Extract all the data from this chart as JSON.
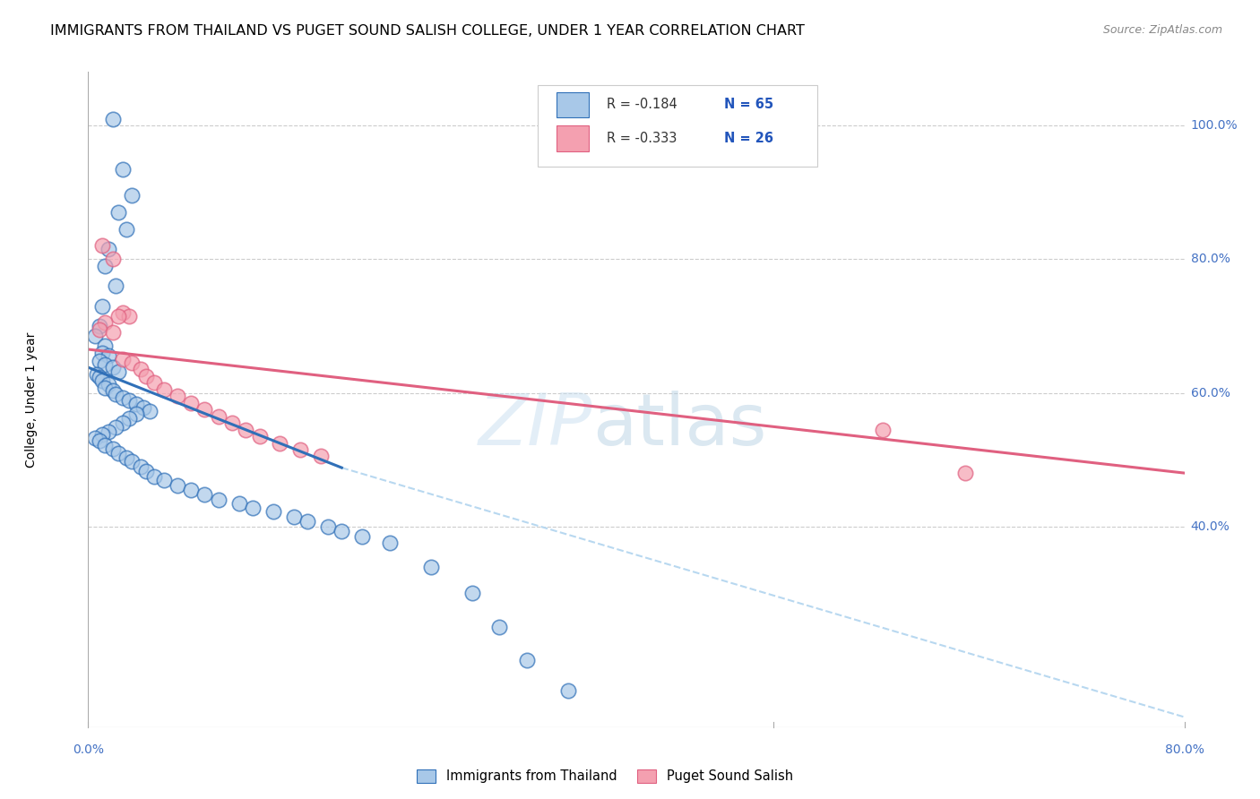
{
  "title": "IMMIGRANTS FROM THAILAND VS PUGET SOUND SALISH COLLEGE, UNDER 1 YEAR CORRELATION CHART",
  "source": "Source: ZipAtlas.com",
  "ylabel": "College, Under 1 year",
  "xlim": [
    0.0,
    0.8
  ],
  "ylim": [
    0.1,
    1.08
  ],
  "ytick_labels": [
    "40.0%",
    "60.0%",
    "80.0%",
    "100.0%"
  ],
  "ytick_values": [
    0.4,
    0.6,
    0.8,
    1.0
  ],
  "xtick_labels": [
    "0.0%",
    "80.0%"
  ],
  "xtick_values": [
    0.0,
    0.8
  ],
  "legend_r1": "R = -0.184",
  "legend_n1": "N = 65",
  "legend_r2": "R = -0.333",
  "legend_n2": "N = 26",
  "legend_label1": "Immigrants from Thailand",
  "legend_label2": "Puget Sound Salish",
  "color_blue": "#a8c8e8",
  "color_pink": "#f4a0b0",
  "color_blue_line": "#3070b8",
  "color_pink_line": "#e06080",
  "color_dashed_line": "#b8d8f0",
  "watermark1": "ZIP",
  "watermark2": "atlas",
  "blue_scatter_x": [
    0.018,
    0.025,
    0.032,
    0.022,
    0.028,
    0.015,
    0.012,
    0.02,
    0.01,
    0.008,
    0.005,
    0.012,
    0.01,
    0.015,
    0.008,
    0.012,
    0.018,
    0.022,
    0.006,
    0.008,
    0.01,
    0.015,
    0.012,
    0.018,
    0.02,
    0.025,
    0.03,
    0.035,
    0.04,
    0.045,
    0.035,
    0.03,
    0.025,
    0.02,
    0.015,
    0.01,
    0.005,
    0.008,
    0.012,
    0.018,
    0.022,
    0.028,
    0.032,
    0.038,
    0.042,
    0.048,
    0.055,
    0.065,
    0.075,
    0.085,
    0.095,
    0.11,
    0.12,
    0.135,
    0.15,
    0.16,
    0.175,
    0.185,
    0.2,
    0.22,
    0.25,
    0.28,
    0.3,
    0.32,
    0.35
  ],
  "blue_scatter_y": [
    1.01,
    0.935,
    0.895,
    0.87,
    0.845,
    0.815,
    0.79,
    0.76,
    0.73,
    0.7,
    0.685,
    0.67,
    0.66,
    0.655,
    0.648,
    0.642,
    0.638,
    0.632,
    0.628,
    0.623,
    0.618,
    0.613,
    0.608,
    0.603,
    0.598,
    0.593,
    0.588,
    0.583,
    0.578,
    0.572,
    0.568,
    0.562,
    0.555,
    0.548,
    0.542,
    0.538,
    0.533,
    0.528,
    0.522,
    0.516,
    0.51,
    0.503,
    0.497,
    0.49,
    0.483,
    0.475,
    0.47,
    0.462,
    0.455,
    0.448,
    0.44,
    0.435,
    0.428,
    0.422,
    0.415,
    0.408,
    0.4,
    0.393,
    0.385,
    0.375,
    0.34,
    0.3,
    0.25,
    0.2,
    0.155
  ],
  "pink_scatter_x": [
    0.01,
    0.018,
    0.025,
    0.03,
    0.022,
    0.012,
    0.008,
    0.018,
    0.025,
    0.032,
    0.038,
    0.042,
    0.048,
    0.055,
    0.065,
    0.075,
    0.085,
    0.095,
    0.105,
    0.115,
    0.125,
    0.14,
    0.155,
    0.17,
    0.58,
    0.64
  ],
  "pink_scatter_y": [
    0.82,
    0.8,
    0.72,
    0.715,
    0.715,
    0.705,
    0.695,
    0.69,
    0.65,
    0.645,
    0.635,
    0.625,
    0.615,
    0.605,
    0.595,
    0.585,
    0.575,
    0.565,
    0.555,
    0.545,
    0.535,
    0.525,
    0.515,
    0.505,
    0.545,
    0.48
  ],
  "blue_line_x": [
    0.0,
    0.185
  ],
  "blue_line_y": [
    0.638,
    0.488
  ],
  "pink_line_x": [
    0.0,
    0.8
  ],
  "pink_line_y": [
    0.665,
    0.48
  ],
  "dashed_line_x": [
    0.185,
    0.8
  ],
  "dashed_line_y": [
    0.488,
    0.115
  ],
  "grid_color": "#cccccc",
  "background_color": "#ffffff",
  "title_fontsize": 11.5,
  "axis_label_fontsize": 10,
  "tick_fontsize": 10
}
